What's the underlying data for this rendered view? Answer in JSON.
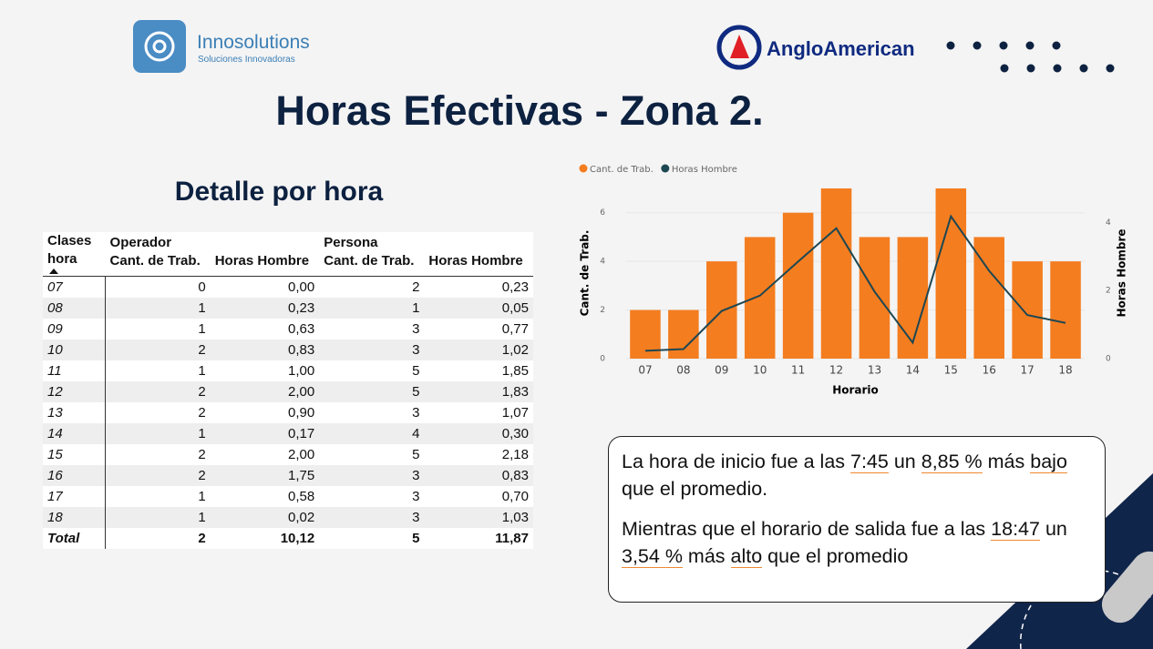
{
  "header": {
    "brand": "Innosolutions",
    "tagline": "Soluciones Innovadoras",
    "partner": "AngloAmerican",
    "title": "Horas Efectivas - Zona 2."
  },
  "table": {
    "title": "Detalle por hora",
    "groups": [
      "Operador",
      "Persona"
    ],
    "columns": [
      "Clases hora",
      "Cant. de Trab.",
      "Horas Hombre",
      "Cant. de Trab.",
      "Horas Hombre"
    ],
    "rows": [
      [
        "07",
        "0",
        "0,00",
        "2",
        "0,23"
      ],
      [
        "08",
        "1",
        "0,23",
        "1",
        "0,05"
      ],
      [
        "09",
        "1",
        "0,63",
        "3",
        "0,77"
      ],
      [
        "10",
        "2",
        "0,83",
        "3",
        "1,02"
      ],
      [
        "11",
        "1",
        "1,00",
        "5",
        "1,85"
      ],
      [
        "12",
        "2",
        "2,00",
        "5",
        "1,83"
      ],
      [
        "13",
        "2",
        "0,90",
        "3",
        "1,07"
      ],
      [
        "14",
        "1",
        "0,17",
        "4",
        "0,30"
      ],
      [
        "15",
        "2",
        "2,00",
        "5",
        "2,18"
      ],
      [
        "16",
        "2",
        "1,75",
        "3",
        "0,83"
      ],
      [
        "17",
        "1",
        "0,58",
        "3",
        "0,70"
      ],
      [
        "18",
        "1",
        "0,02",
        "3",
        "1,03"
      ]
    ],
    "total": [
      "Total",
      "2",
      "10,12",
      "5",
      "11,87"
    ]
  },
  "chart_data": {
    "type": "bar-line",
    "categories": [
      "07",
      "08",
      "09",
      "10",
      "11",
      "12",
      "13",
      "14",
      "15",
      "16",
      "17",
      "18"
    ],
    "series": [
      {
        "name": "Cant. de Trab.",
        "type": "bar",
        "color": "#f47d20",
        "values": [
          2,
          2,
          4,
          5,
          6,
          7,
          5,
          5,
          7,
          5,
          4,
          4
        ]
      },
      {
        "name": "Horas Hombre",
        "type": "line",
        "axis": "y2",
        "color": "#1d4752",
        "values": [
          0.23,
          0.28,
          1.4,
          1.85,
          2.85,
          3.83,
          1.97,
          0.47,
          4.18,
          2.58,
          1.28,
          1.05
        ]
      }
    ],
    "xlabel": "Horario",
    "ylabel": "Cant. de Trab.",
    "y2label": "Horas Hombre",
    "ylim": [
      0,
      7
    ],
    "yticks": [
      0,
      2,
      4,
      6
    ],
    "y2lim": [
      0,
      5
    ],
    "y2ticks": [
      0,
      2,
      4
    ],
    "grid": true,
    "legend": "top-left"
  },
  "note": {
    "paragraphs": [
      [
        {
          "text": "La hora de inicio fue a las ",
          "mark": false
        },
        {
          "text": "7:45",
          "mark": true
        },
        {
          "text": " un ",
          "mark": false
        },
        {
          "text": "8,85 %",
          "mark": true
        },
        {
          "text": " más ",
          "mark": false
        },
        {
          "text": "bajo",
          "mark": true
        },
        {
          "text": " que el promedio.",
          "mark": false
        }
      ],
      [
        {
          "text": "Mientras que el horario de salida fue a las ",
          "mark": false
        },
        {
          "text": "18:47",
          "mark": true
        },
        {
          "text": " un ",
          "mark": false
        },
        {
          "text": "3,54 %",
          "mark": true
        },
        {
          "text": " más ",
          "mark": false
        },
        {
          "text": "alto",
          "mark": true
        },
        {
          "text": " que el promedio",
          "mark": false
        }
      ]
    ]
  }
}
